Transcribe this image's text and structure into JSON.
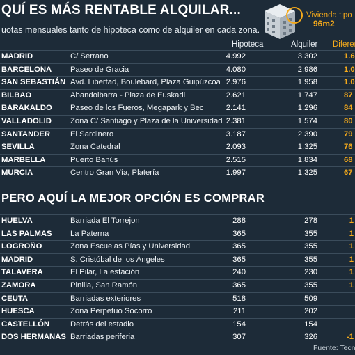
{
  "header": {
    "title": "QUÍ ES MÁS RENTABLE ALQUILAR...",
    "subtitle": "uotas mensuales tanto de hipoteca como de alquiler en cada zona.",
    "badge_label": "Vivienda tipo",
    "badge_value": "96m2"
  },
  "columns": {
    "hipoteca": "Hipoteca",
    "alquiler": "Alquiler",
    "diferencia": "Diferen"
  },
  "rent_table": [
    {
      "city": "MADRID",
      "zone": "C/ Serrano",
      "hipoteca": "4.992",
      "alquiler": "3.302",
      "dif": "1.69"
    },
    {
      "city": "BARCELONA",
      "zone": "Paseo de Gracia",
      "hipoteca": "4.080",
      "alquiler": "2.986",
      "dif": "1.09"
    },
    {
      "city": "SAN SEBASTIÁN",
      "zone": "Avd. Libertad,  Boulebard, Plaza Guipúzcoa",
      "hipoteca": "2.976",
      "alquiler": "1.958",
      "dif": "1.01"
    },
    {
      "city": "BILBAO",
      "zone": "Abandoibarra - Plaza de Euskadi",
      "hipoteca": "2.621",
      "alquiler": "1.747",
      "dif": "87"
    },
    {
      "city": "BARAKALDO",
      "zone": "Paseo de los Fueros, Megapark y Bec",
      "hipoteca": "2.141",
      "alquiler": "1.296",
      "dif": "84"
    },
    {
      "city": "VALLADOLID",
      "zone": "Zona C/ Santiago y Plaza de la Universidad",
      "hipoteca": "2.381",
      "alquiler": "1.574",
      "dif": "80"
    },
    {
      "city": "SANTANDER",
      "zone": "El Sardinero",
      "hipoteca": "3.187",
      "alquiler": "2.390",
      "dif": "79"
    },
    {
      "city": "SEVILLA",
      "zone": "Zona Catedral",
      "hipoteca": "2.093",
      "alquiler": "1.325",
      "dif": "76"
    },
    {
      "city": "MARBELLA",
      "zone": "Puerto Banús",
      "hipoteca": "2.515",
      "alquiler": "1.834",
      "dif": "68"
    },
    {
      "city": "MURCIA",
      "zone": "Centro Gran Vía, Platería",
      "hipoteca": "1.997",
      "alquiler": "1.325",
      "dif": "67"
    }
  ],
  "section2_title": "PERO AQUÍ LA MEJOR OPCIÓN ES COMPRAR",
  "buy_table": [
    {
      "city": "HUELVA",
      "zone": "Barriada El Torrejon",
      "hipoteca": "288",
      "alquiler": "278",
      "dif": "1"
    },
    {
      "city": "LAS PALMAS",
      "zone": "La Paterna",
      "hipoteca": "365",
      "alquiler": "355",
      "dif": "1"
    },
    {
      "city": "LOGROÑO",
      "zone": "Zona Escuelas Pías y Universidad",
      "hipoteca": "365",
      "alquiler": "355",
      "dif": "1"
    },
    {
      "city": "MADRID",
      "zone": "S. Cristóbal de los Ángeles",
      "hipoteca": "365",
      "alquiler": "355",
      "dif": "1"
    },
    {
      "city": "TALAVERA",
      "zone": "El Pilar, La estación",
      "hipoteca": "240",
      "alquiler": "230",
      "dif": "1"
    },
    {
      "city": "ZAMORA",
      "zone": "Pinilla, San Ramón",
      "hipoteca": "365",
      "alquiler": "355",
      "dif": "1"
    },
    {
      "city": "CEUTA",
      "zone": "Barriadas exteriores",
      "hipoteca": "518",
      "alquiler": "509",
      "dif": ""
    },
    {
      "city": "HUESCA",
      "zone": "Zona Perpetuo Socorro",
      "hipoteca": "211",
      "alquiler": "202",
      "dif": ""
    },
    {
      "city": "CASTELLÓN",
      "zone": "Detrás del estadio",
      "hipoteca": "154",
      "alquiler": "154",
      "dif": ""
    },
    {
      "city": "DOS HERMANAS",
      "zone": "Barriadas periferia",
      "hipoteca": "307",
      "alquiler": "326",
      "dif": "-1"
    }
  ],
  "source": "Fuente: Tecnita",
  "colors": {
    "accent": "#f4a91b",
    "background": "#1d2b38"
  }
}
